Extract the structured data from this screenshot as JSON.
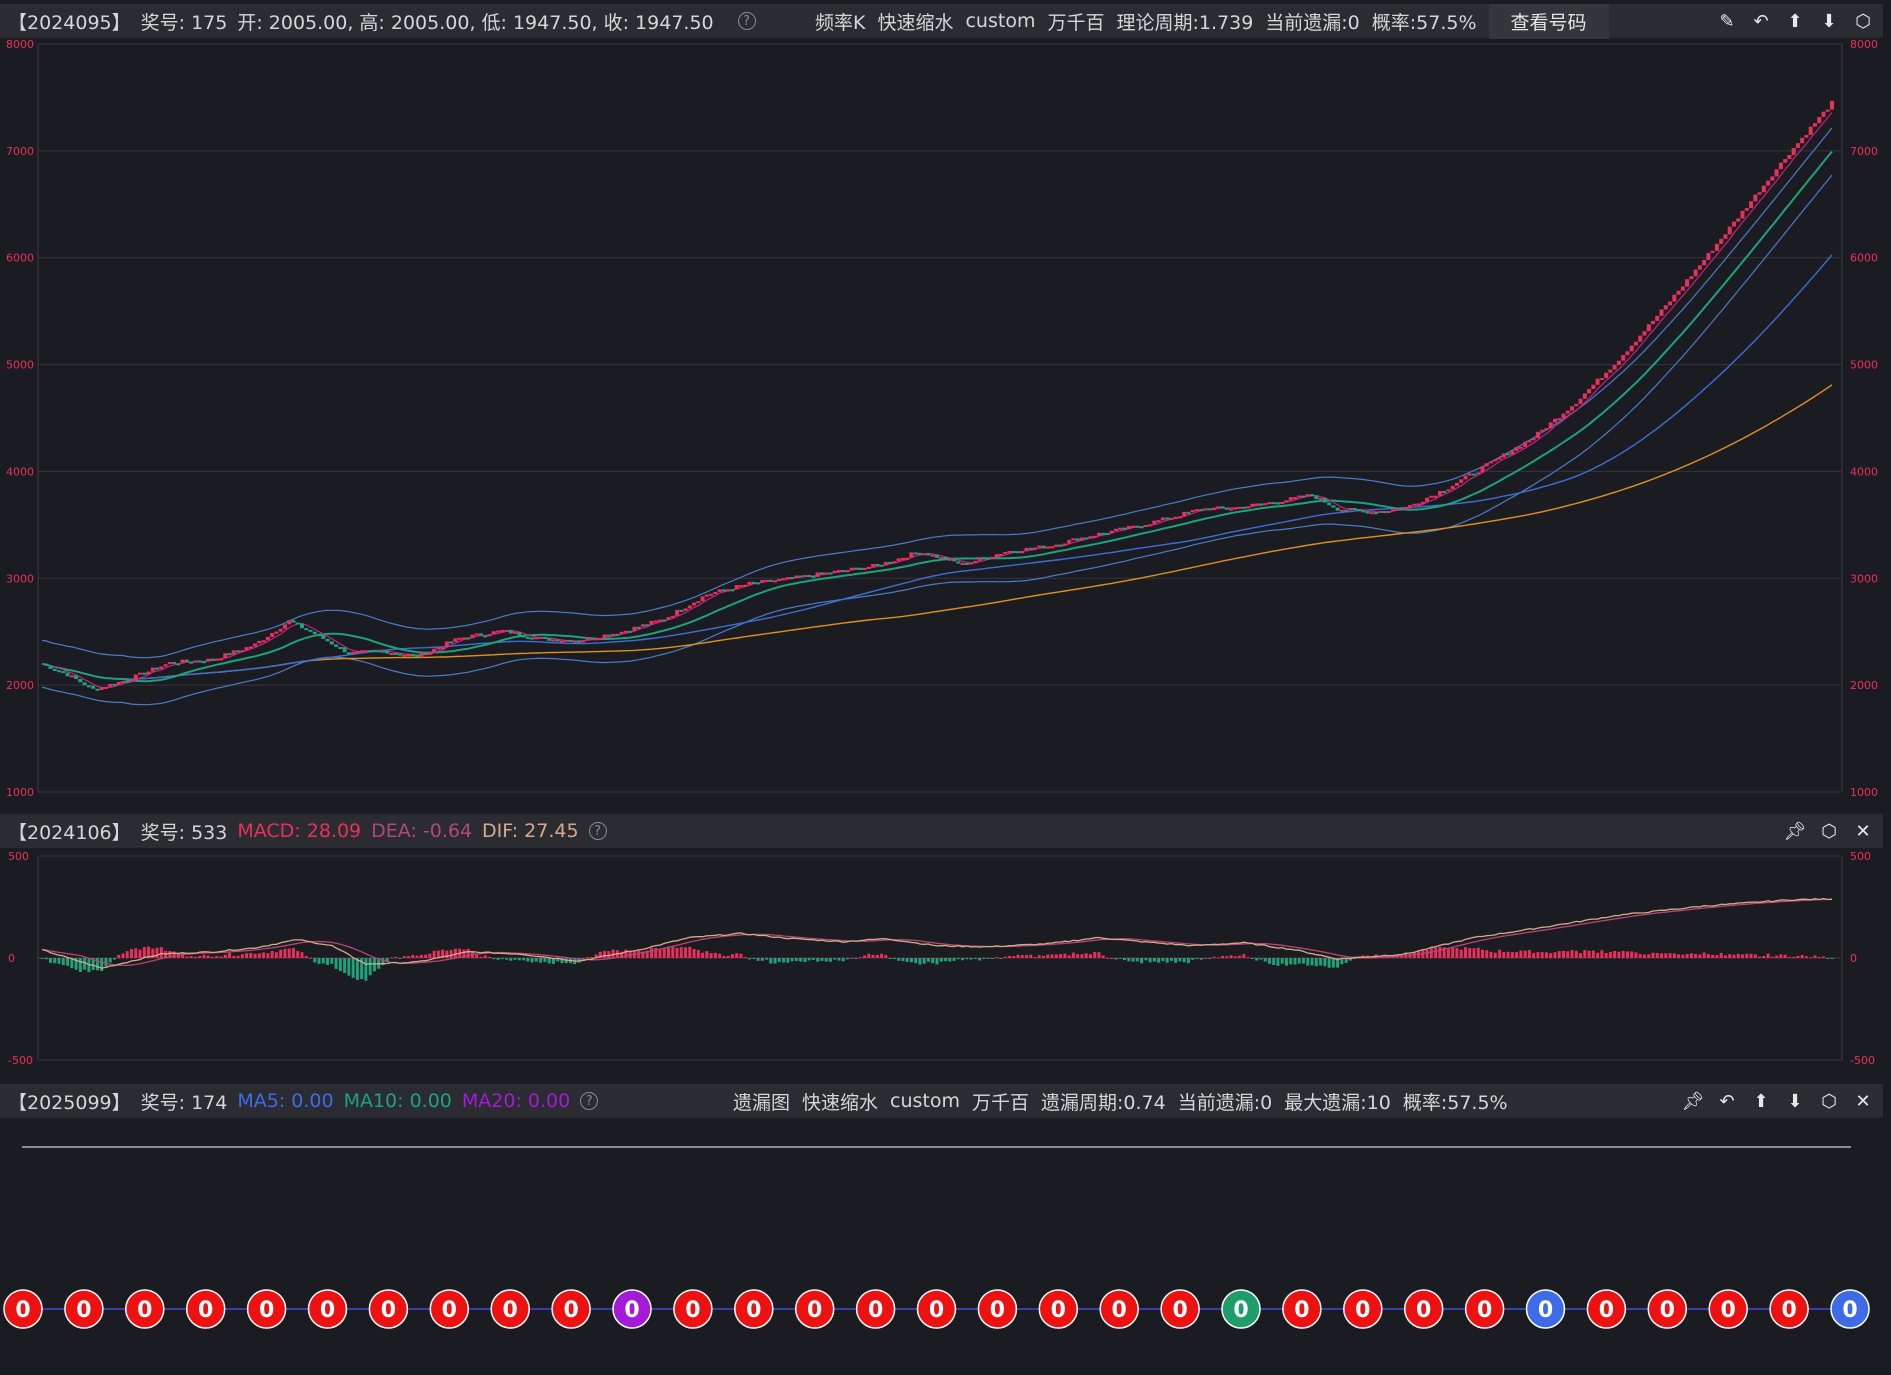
{
  "colors": {
    "bg": "#1b1c21",
    "bar_bg": "#2b2c31",
    "up": "#e8305a",
    "down": "#1fa27a",
    "ma5": "#c0238a",
    "ma10": "#1fa27a",
    "ma20": "#3b6fd8",
    "ma60": "#e09020",
    "macd": "#e8305a",
    "dea": "#b04878",
    "dif": "#d7a98a",
    "circle_red": "#ee1111",
    "circle_purple": "#a41ad8",
    "circle_green": "#1f9e6a",
    "circle_blue": "#3e6be8"
  },
  "main_header": {
    "period": "【2024095】",
    "award_label": "奖号: ",
    "award_value": "175",
    "ohlc": "开: 2005.00, 高: 2005.00, 低: 1947.50, 收: 1947.50",
    "help": "?",
    "items": [
      "频率K",
      "快速缩水",
      "custom",
      "万千百",
      "理论周期:1.739",
      "当前遗漏:0",
      "概率:57.5%"
    ],
    "button": "查看号码",
    "icons": [
      "edit-icon",
      "undo-icon",
      "arrow-up-icon",
      "arrow-down-icon",
      "settings-icon"
    ]
  },
  "macd_header": {
    "period": "【2024106】",
    "award_label": "奖号: ",
    "award_value": "533",
    "macd": "MACD: 28.09",
    "dea": "DEA: -0.64",
    "dif": "DIF: 27.45",
    "help": "?",
    "icons": [
      "pin-icon",
      "settings-icon",
      "close-icon"
    ]
  },
  "miss_header": {
    "period": "【2025099】",
    "award_label": "奖号: ",
    "award_value": "174",
    "ma5": "MA5: 0.00",
    "ma10": "MA10: 0.00",
    "ma20": "MA20: 0.00",
    "help": "?",
    "items": [
      "遗漏图",
      "快速缩水",
      "custom",
      "万千百",
      "遗漏周期:0.74",
      "当前遗漏:0",
      "最大遗漏:10",
      "概率:57.5%"
    ],
    "icons": [
      "pin-icon",
      "undo-icon",
      "arrow-up-icon",
      "arrow-down-icon",
      "settings-icon",
      "close-icon"
    ]
  },
  "chart_data": [
    {
      "type": "candlestick",
      "ylim": [
        1000,
        8000
      ],
      "yticks": [
        "1000",
        "2000",
        "3000",
        "4000",
        "5000",
        "6000",
        "7000",
        "8000"
      ],
      "trend_points": [
        [
          0,
          2200
        ],
        [
          6,
          2100
        ],
        [
          12,
          1960
        ],
        [
          20,
          2050
        ],
        [
          30,
          2210
        ],
        [
          40,
          2240
        ],
        [
          50,
          2380
        ],
        [
          58,
          2600
        ],
        [
          64,
          2480
        ],
        [
          72,
          2300
        ],
        [
          80,
          2320
        ],
        [
          88,
          2270
        ],
        [
          98,
          2440
        ],
        [
          108,
          2510
        ],
        [
          118,
          2430
        ],
        [
          126,
          2420
        ],
        [
          136,
          2500
        ],
        [
          146,
          2620
        ],
        [
          156,
          2850
        ],
        [
          166,
          2950
        ],
        [
          176,
          3000
        ],
        [
          186,
          3060
        ],
        [
          196,
          3120
        ],
        [
          206,
          3250
        ],
        [
          216,
          3130
        ],
        [
          226,
          3250
        ],
        [
          236,
          3300
        ],
        [
          246,
          3400
        ],
        [
          256,
          3480
        ],
        [
          264,
          3560
        ],
        [
          272,
          3650
        ],
        [
          280,
          3660
        ],
        [
          290,
          3720
        ],
        [
          298,
          3780
        ],
        [
          304,
          3650
        ],
        [
          312,
          3620
        ],
        [
          320,
          3660
        ],
        [
          330,
          3850
        ],
        [
          340,
          4080
        ],
        [
          350,
          4320
        ],
        [
          360,
          4650
        ],
        [
          370,
          5050
        ],
        [
          380,
          5500
        ],
        [
          390,
          5980
        ],
        [
          400,
          6480
        ],
        [
          410,
          6980
        ],
        [
          420,
          7450
        ]
      ],
      "bollinger_width": 220,
      "moving_averages": [
        "MA5",
        "MA10",
        "MA20",
        "MA60"
      ]
    },
    {
      "type": "line",
      "ylim": [
        -500,
        500
      ],
      "yticks": [
        "-500",
        "0",
        "500"
      ],
      "series": [
        {
          "name": "MACD",
          "type": "bar"
        },
        {
          "name": "DEA",
          "type": "line"
        },
        {
          "name": "DIF",
          "type": "line"
        }
      ],
      "dif_points": [
        [
          0,
          40
        ],
        [
          14,
          -50
        ],
        [
          28,
          20
        ],
        [
          40,
          30
        ],
        [
          50,
          50
        ],
        [
          60,
          90
        ],
        [
          68,
          60
        ],
        [
          76,
          -30
        ],
        [
          88,
          -20
        ],
        [
          100,
          30
        ],
        [
          112,
          20
        ],
        [
          126,
          -15
        ],
        [
          140,
          40
        ],
        [
          152,
          100
        ],
        [
          164,
          120
        ],
        [
          176,
          95
        ],
        [
          188,
          80
        ],
        [
          198,
          95
        ],
        [
          210,
          60
        ],
        [
          222,
          55
        ],
        [
          236,
          70
        ],
        [
          248,
          100
        ],
        [
          258,
          80
        ],
        [
          270,
          60
        ],
        [
          282,
          75
        ],
        [
          294,
          40
        ],
        [
          304,
          -5
        ],
        [
          320,
          20
        ],
        [
          336,
          100
        ],
        [
          352,
          150
        ],
        [
          370,
          210
        ],
        [
          390,
          255
        ],
        [
          410,
          285
        ],
        [
          420,
          290
        ]
      ]
    },
    {
      "type": "scatter",
      "title": "",
      "values": [
        0,
        0,
        0,
        0,
        0,
        0,
        0,
        0,
        0,
        0,
        0,
        0,
        0,
        0,
        0,
        0,
        0,
        0,
        0,
        0,
        0,
        0,
        0,
        0,
        0,
        0,
        0,
        0,
        0,
        0,
        0
      ],
      "labels": [
        "0",
        "0",
        "0",
        "0",
        "0",
        "0",
        "0",
        "0",
        "0",
        "0",
        "0",
        "0",
        "0",
        "0",
        "0",
        "0",
        "0",
        "0",
        "0",
        "0",
        "0",
        "0",
        "0",
        "0",
        "0",
        "0",
        "0",
        "0",
        "0",
        "0",
        "0"
      ],
      "point_colors": [
        "red",
        "red",
        "red",
        "red",
        "red",
        "red",
        "red",
        "red",
        "red",
        "red",
        "purple",
        "red",
        "red",
        "red",
        "red",
        "red",
        "red",
        "red",
        "red",
        "red",
        "green",
        "red",
        "red",
        "red",
        "red",
        "blue",
        "red",
        "red",
        "red",
        "red",
        "blue"
      ]
    }
  ]
}
